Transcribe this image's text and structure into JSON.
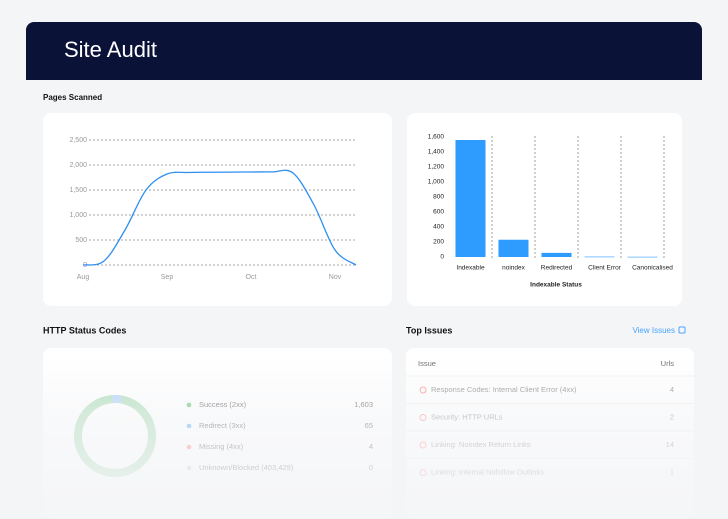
{
  "header": {
    "title": "Site Audit"
  },
  "chart_data": [
    {
      "type": "line",
      "title": "Pages Scanned",
      "categories": [
        "Aug",
        null,
        null,
        null,
        "Sep",
        null,
        null,
        null,
        "Oct",
        null,
        null,
        null,
        "Nov",
        null
      ],
      "values": [
        0,
        80,
        700,
        1500,
        1820,
        1850,
        1855,
        1858,
        1860,
        1862,
        1840,
        1200,
        300,
        0
      ],
      "color": "#2e8ff0",
      "ylim": [
        0,
        2500
      ],
      "yticks": [
        0,
        500,
        {
          "value": 1000,
          "label": "1,000"
        },
        {
          "value": 1500,
          "label": "1,500"
        },
        {
          "value": 2000,
          "label": "2,000"
        },
        {
          "value": 2500,
          "label": "2,500"
        }
      ],
      "grid": true
    },
    {
      "type": "bar",
      "xlabel": "Indexable Status",
      "categories": [
        "Indexable",
        "noindex",
        "Redirected",
        "Client Error",
        "Canonicalised"
      ],
      "values": [
        1560,
        230,
        55,
        5,
        3
      ],
      "color": "#2e9bff",
      "ylim": [
        0,
        1600
      ],
      "yticks": [
        0,
        200,
        400,
        600,
        800,
        {
          "value": 1000,
          "label": "1,000"
        },
        {
          "value": 1200,
          "label": "1,200"
        },
        {
          "value": 1400,
          "label": "1,400"
        },
        {
          "value": 1600,
          "label": "1,600"
        }
      ]
    },
    {
      "type": "donut",
      "title": "HTTP Status Codes",
      "categories": [
        "Success (2xx)",
        "Redirect (3xx)",
        "Missing (4xx)",
        "Unknown/Blocked (403,429)"
      ],
      "values": [
        1603,
        65,
        4,
        0
      ],
      "value_labels": [
        "1,603",
        "65",
        "4",
        "0"
      ],
      "colors": [
        "#5cc46e",
        "#5aa8ff",
        "#ff7b7b",
        "#c9c9c9"
      ]
    }
  ],
  "top_issues": {
    "title": "Top Issues",
    "link": "View Issues",
    "columns": [
      "Issue",
      "Urls"
    ],
    "rows": [
      [
        "Response Codes: Internal Client Error (4xx)",
        4
      ],
      [
        "Security: HTTP URLs",
        2
      ],
      [
        "Linking: Noindex Return Links",
        14
      ],
      [
        "Linking: Internal Nofollow Outlinks",
        1
      ]
    ]
  }
}
